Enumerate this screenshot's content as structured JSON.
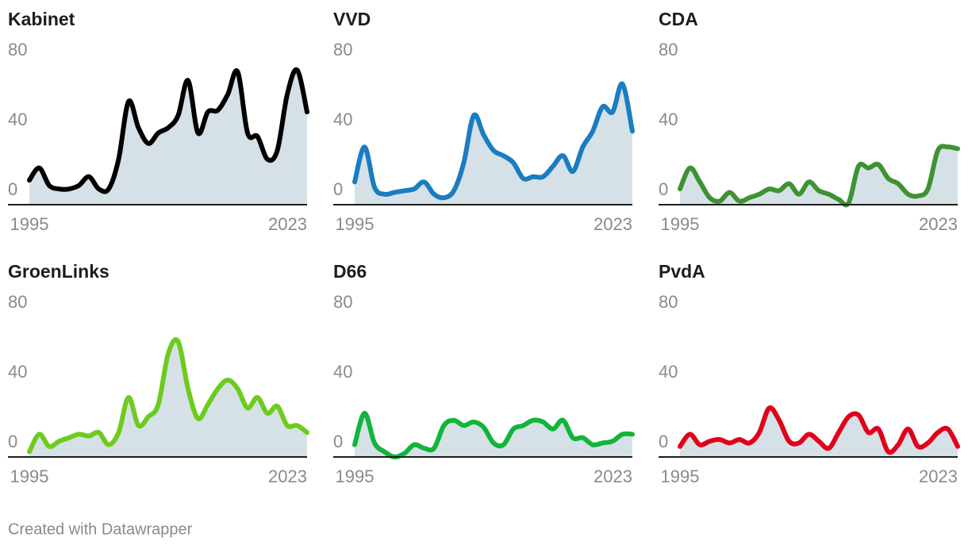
{
  "footer": "Created with Datawrapper",
  "chart_data": [
    {
      "type": "line",
      "title": "Kabinet",
      "color": "#000000",
      "area_color": "#d5e1e7",
      "x": [
        1995,
        1996,
        1997,
        1998,
        1999,
        2000,
        2001,
        2002,
        2003,
        2004,
        2005,
        2006,
        2007,
        2008,
        2009,
        2010,
        2011,
        2012,
        2013,
        2014,
        2015,
        2016,
        2017,
        2018,
        2019,
        2020,
        2021,
        2022,
        2023
      ],
      "values": [
        6,
        13,
        3,
        1,
        1,
        3,
        8,
        1,
        1,
        18,
        51,
        36,
        27,
        33,
        36,
        43,
        63,
        33,
        45,
        46,
        55,
        68,
        33,
        31,
        18,
        23,
        55,
        69,
        45
      ],
      "xlim": [
        1995,
        2023
      ],
      "xticks": [
        1995,
        2023
      ],
      "ylim": [
        -8,
        80
      ],
      "yticks": [
        0,
        40,
        80
      ]
    },
    {
      "type": "line",
      "title": "VVD",
      "color": "#1a7cc1",
      "area_color": "#d5e1e7",
      "x": [
        1995,
        1996,
        1997,
        1998,
        1999,
        2000,
        2001,
        2002,
        2003,
        2004,
        2005,
        2006,
        2007,
        2008,
        2009,
        2010,
        2011,
        2012,
        2013,
        2014,
        2015,
        2016,
        2017,
        2018,
        2019,
        2020,
        2021,
        2022,
        2023
      ],
      "values": [
        5,
        25,
        2,
        -2,
        -1,
        0,
        1,
        5,
        -2,
        -4,
        0,
        16,
        43,
        32,
        23,
        20,
        16,
        7,
        8,
        8,
        14,
        20,
        11,
        25,
        34,
        48,
        45,
        61,
        34
      ],
      "xlim": [
        1995,
        2023
      ],
      "xticks": [
        1995,
        2023
      ],
      "ylim": [
        -8,
        80
      ],
      "yticks": [
        0,
        40,
        80
      ]
    },
    {
      "type": "line",
      "title": "CDA",
      "color": "#3f9232",
      "area_color": "#d5e1e7",
      "x": [
        1995,
        1996,
        1997,
        1998,
        1999,
        2000,
        2001,
        2002,
        2003,
        2004,
        2005,
        2006,
        2007,
        2008,
        2009,
        2010,
        2011,
        2012,
        2013,
        2014,
        2015,
        2016,
        2017,
        2018,
        2019,
        2020,
        2021,
        2022,
        2023
      ],
      "values": [
        1,
        13,
        5,
        -4,
        -6,
        -1,
        -6,
        -4,
        -2,
        1,
        0,
        4,
        -2,
        5,
        0,
        -2,
        -5,
        -7,
        14,
        13,
        15,
        7,
        4,
        -2,
        -3,
        1,
        23,
        25,
        24
      ],
      "xlim": [
        1995,
        2023
      ],
      "xticks": [
        1995,
        2023
      ],
      "ylim": [
        -8,
        80
      ],
      "yticks": [
        0,
        40,
        80
      ]
    },
    {
      "type": "line",
      "title": "GroenLinks",
      "color": "#6dcb1d",
      "area_color": "#d5e1e7",
      "x": [
        1995,
        1996,
        1997,
        1998,
        1999,
        2000,
        2001,
        2002,
        2003,
        2004,
        2005,
        2006,
        2007,
        2008,
        2009,
        2010,
        2011,
        2012,
        2013,
        2014,
        2015,
        2016,
        2017,
        2018,
        2019,
        2020,
        2021,
        2022,
        2023
      ],
      "values": [
        -5,
        5,
        -2,
        1,
        3,
        5,
        4,
        6,
        -1,
        6,
        26,
        10,
        15,
        22,
        51,
        58,
        31,
        14,
        22,
        31,
        36,
        31,
        20,
        26,
        17,
        21,
        10,
        10,
        6
      ],
      "xlim": [
        1995,
        2023
      ],
      "xticks": [
        1995,
        2023
      ],
      "ylim": [
        -8,
        80
      ],
      "yticks": [
        0,
        40,
        80
      ]
    },
    {
      "type": "line",
      "title": "D66",
      "color": "#12b53b",
      "area_color": "#d5e1e7",
      "x": [
        1995,
        1996,
        1997,
        1998,
        1999,
        2000,
        2001,
        2002,
        2003,
        2004,
        2005,
        2006,
        2007,
        2008,
        2009,
        2010,
        2011,
        2012,
        2013,
        2014,
        2015,
        2016,
        2017,
        2018,
        2019,
        2020,
        2021,
        2022,
        2023
      ],
      "values": [
        -1,
        17,
        0,
        -5,
        -8,
        -6,
        -1,
        -3,
        -3,
        10,
        13,
        10,
        12,
        9,
        0,
        -1,
        8,
        10,
        13,
        12,
        8,
        13,
        3,
        3,
        -1,
        0,
        1,
        5,
        5
      ],
      "xlim": [
        1995,
        2023
      ],
      "xticks": [
        1995,
        2023
      ],
      "ylim": [
        -8,
        80
      ],
      "yticks": [
        0,
        40,
        80
      ]
    },
    {
      "type": "line",
      "title": "PvdA",
      "color": "#e1001a",
      "area_color": "#d5e1e7",
      "x": [
        1995,
        1996,
        1997,
        1998,
        1999,
        2000,
        2001,
        2002,
        2003,
        2004,
        2005,
        2006,
        2007,
        2008,
        2009,
        2010,
        2011,
        2012,
        2013,
        2014,
        2015,
        2016,
        2017,
        2018,
        2019,
        2020,
        2021,
        2022,
        2023
      ],
      "values": [
        -2,
        5,
        -1,
        1,
        2,
        0,
        2,
        0,
        6,
        20,
        13,
        1,
        0,
        5,
        1,
        -3,
        6,
        15,
        16,
        6,
        8,
        -5,
        -1,
        8,
        -2,
        0,
        6,
        8,
        -2
      ],
      "xlim": [
        1995,
        2023
      ],
      "xticks": [
        1995,
        2023
      ],
      "ylim": [
        -8,
        80
      ],
      "yticks": [
        0,
        40,
        80
      ]
    }
  ]
}
